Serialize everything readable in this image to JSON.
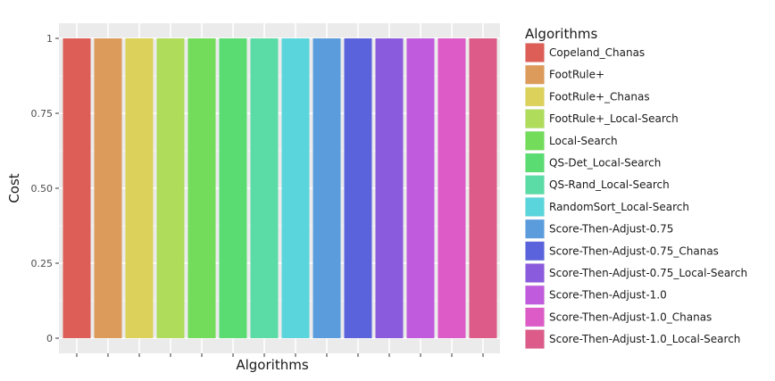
{
  "chart_data": {
    "type": "bar",
    "title": "",
    "xlabel": "Algorithms",
    "ylabel": "Cost",
    "ylim": [
      0,
      1
    ],
    "yticks": [
      0,
      0.25,
      0.5,
      0.75,
      1
    ],
    "ytick_labels": [
      "0",
      "0.25",
      "0.50",
      "0.75",
      "1"
    ],
    "grid": true,
    "legend_position": "right",
    "legend_title": "Algorithms",
    "categories": [
      "Copeland_Chanas",
      "FootRule+",
      "FootRule+_Chanas",
      "FootRule+_Local-Search",
      "Local-Search",
      "QS-Det_Local-Search",
      "QS-Rand_Local-Search",
      "RandomSort_Local-Search",
      "Score-Then-Adjust-0.75",
      "Score-Then-Adjust-0.75_Chanas",
      "Score-Then-Adjust-0.75_Local-Search",
      "Score-Then-Adjust-1.0",
      "Score-Then-Adjust-1.0_Chanas",
      "Score-Then-Adjust-1.0_Local-Search"
    ],
    "values": [
      1,
      1,
      1,
      1,
      1,
      1,
      1,
      1,
      1,
      1,
      1,
      1,
      1,
      1
    ],
    "colors": [
      "#dc5e56",
      "#dc9a5b",
      "#dcd25b",
      "#afdc5b",
      "#74dc5b",
      "#5bdc73",
      "#5bdca7",
      "#5bd5dc",
      "#5b9cdc",
      "#5b63dc",
      "#8a5bdc",
      "#bf5bdc",
      "#dc5bc7",
      "#dc5b88"
    ]
  }
}
